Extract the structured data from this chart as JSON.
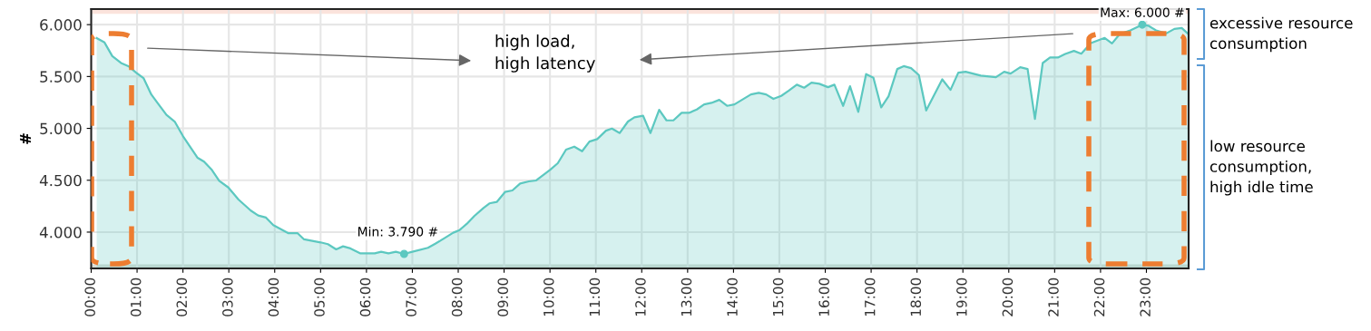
{
  "chart_data": {
    "type": "area",
    "ylabel": "#",
    "x": [
      0.12,
      0.29,
      0.46,
      0.65,
      0.81,
      0.98,
      1.14,
      1.31,
      1.47,
      1.64,
      1.82,
      2.0,
      2.32,
      2.46,
      2.62,
      2.79,
      2.99,
      3.21,
      3.48,
      3.64,
      3.81,
      3.97,
      4.3,
      4.5,
      4.64,
      5.0,
      5.16,
      5.34,
      5.49,
      5.65,
      5.86,
      6.18,
      6.32,
      6.48,
      6.64,
      6.82,
      7.0,
      7.34,
      7.5,
      7.7,
      7.89,
      8.03,
      8.19,
      8.35,
      8.55,
      8.68,
      8.84,
      9.02,
      9.18,
      9.35,
      9.54,
      9.7,
      10.0,
      10.17,
      10.35,
      10.53,
      10.7,
      10.86,
      11.03,
      11.22,
      11.35,
      11.52,
      11.7,
      11.84,
      12.03,
      12.19,
      12.38,
      12.54,
      12.69,
      12.87,
      13.03,
      13.2,
      13.36,
      13.52,
      13.69,
      13.86,
      14.02,
      14.38,
      14.55,
      14.71,
      14.87,
      15.04,
      15.2,
      15.38,
      15.54,
      15.7,
      15.87,
      16.06,
      16.2,
      16.39,
      16.54,
      16.72,
      16.89,
      17.05,
      17.22,
      17.38,
      17.57,
      17.71,
      17.87,
      18.04,
      18.2,
      18.55,
      18.73,
      18.9,
      19.06,
      19.39,
      19.72,
      19.9,
      20.04,
      20.25,
      20.41,
      20.57,
      20.74,
      20.9,
      21.07,
      21.23,
      21.42,
      21.58,
      21.79,
      22.09,
      22.25,
      22.42,
      22.65,
      22.91,
      23.04,
      23.21,
      23.43,
      23.61,
      23.77,
      23.9
    ],
    "series": [
      {
        "color": "#5cc8c0",
        "values": [
          5870,
          5828,
          5697,
          5630,
          5600,
          5537,
          5485,
          5327,
          5231,
          5130,
          5066,
          4926,
          4716,
          4679,
          4605,
          4495,
          4430,
          4314,
          4207,
          4160,
          4140,
          4067,
          3989,
          3989,
          3930,
          3901,
          3884,
          3834,
          3863,
          3843,
          3796,
          3796,
          3810,
          3796,
          3811,
          3790,
          3811,
          3849,
          3888,
          3942,
          3994,
          4020,
          4081,
          4155,
          4233,
          4277,
          4291,
          4387,
          4402,
          4469,
          4489,
          4498,
          4600,
          4664,
          4795,
          4824,
          4780,
          4873,
          4897,
          4978,
          4998,
          4955,
          5066,
          5106,
          5121,
          4955,
          5179,
          5077,
          5077,
          5150,
          5150,
          5182,
          5231,
          5246,
          5275,
          5217,
          5231,
          5327,
          5342,
          5327,
          5284,
          5313,
          5362,
          5421,
          5392,
          5441,
          5430,
          5397,
          5421,
          5217,
          5406,
          5159,
          5523,
          5488,
          5202,
          5310,
          5572,
          5600,
          5581,
          5514,
          5173,
          5473,
          5371,
          5537,
          5546,
          5508,
          5493,
          5546,
          5528,
          5590,
          5572,
          5092,
          5630,
          5683,
          5683,
          5717,
          5747,
          5720,
          5822,
          5872,
          5819,
          5910,
          5945,
          6000,
          5990,
          5945,
          5915,
          5959,
          5968,
          5915
        ]
      },
      {
        "type": "scatter",
        "color": "#5cc8c0",
        "x": [
          6.82,
          22.91
        ],
        "values": [
          3790,
          6000
        ]
      }
    ],
    "xlim": [
      0,
      23.92
    ],
    "ylim": [
      3650,
      6150
    ],
    "xticks": [
      {
        "value": 0,
        "label": "00:00"
      },
      {
        "value": 1,
        "label": "01:00"
      },
      {
        "value": 2,
        "label": "02:00"
      },
      {
        "value": 3,
        "label": "03:00"
      },
      {
        "value": 4,
        "label": "04:00"
      },
      {
        "value": 5,
        "label": "05:00"
      },
      {
        "value": 6,
        "label": "06:00"
      },
      {
        "value": 7,
        "label": "07:00"
      },
      {
        "value": 8,
        "label": "08:00"
      },
      {
        "value": 9,
        "label": "09:00"
      },
      {
        "value": 10,
        "label": "10:00"
      },
      {
        "value": 11,
        "label": "11:00"
      },
      {
        "value": 12,
        "label": "12:00"
      },
      {
        "value": 13,
        "label": "13:00"
      },
      {
        "value": 14,
        "label": "14:00"
      },
      {
        "value": 15,
        "label": "15:00"
      },
      {
        "value": 16,
        "label": "16:00"
      },
      {
        "value": 17,
        "label": "17:00"
      },
      {
        "value": 18,
        "label": "18:00"
      },
      {
        "value": 19,
        "label": "19:00"
      },
      {
        "value": 20,
        "label": "20:00"
      },
      {
        "value": 21,
        "label": "21:00"
      },
      {
        "value": 22,
        "label": "22:00"
      },
      {
        "value": 23,
        "label": "23:00"
      }
    ],
    "yticks": [
      {
        "value": 4000,
        "label": "4.000"
      },
      {
        "value": 4500,
        "label": "4.500"
      },
      {
        "value": 5000,
        "label": "5.000"
      },
      {
        "value": 5500,
        "label": "5.500"
      },
      {
        "value": 6000,
        "label": "6.000"
      }
    ],
    "bands": [
      {
        "axis": "y",
        "from": 6105,
        "to": 6150,
        "color": "#fbe3dc"
      },
      {
        "axis": "y",
        "from": 3650,
        "to": 3690,
        "color": "#d8ddd6"
      }
    ],
    "grid": true,
    "annotations": [
      {
        "text": "Min: 3.790 #",
        "x": 6.82,
        "y": 3790
      },
      {
        "text": "Max: 6.000 #",
        "x": 22.91,
        "y": 6000
      },
      "high load,\nhigh latency",
      "excessive resource\nconsumption",
      "low resource\nconsumption,\nhigh idle time"
    ]
  }
}
